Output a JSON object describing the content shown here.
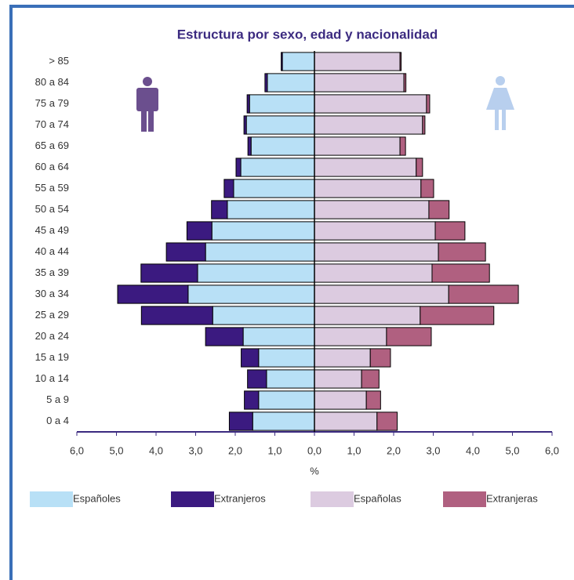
{
  "chart_data": {
    "type": "pyramid",
    "title": "Estructura por sexo, edad y nacionalidad",
    "xlabel": "%",
    "categories": [
      "> 85",
      "80 a 84",
      "75 a 79",
      "70 a 74",
      "65 a 69",
      "60 a 64",
      "55 a 59",
      "50 a 54",
      "45 a 49",
      "40 a 44",
      "35 a 39",
      "30 a 34",
      "25 a 29",
      "20 a 24",
      "15 a 19",
      "10 a 14",
      "5 a 9",
      "0 a 4"
    ],
    "series": [
      {
        "name": "Españoles",
        "color": "#b8e0f6",
        "side": "left",
        "values": [
          0.81,
          1.19,
          1.64,
          1.72,
          1.6,
          1.86,
          2.04,
          2.2,
          2.59,
          2.75,
          2.95,
          3.19,
          2.57,
          1.8,
          1.41,
          1.21,
          1.41,
          1.56
        ]
      },
      {
        "name": "Extranjeros",
        "color": "#3b1a80",
        "side": "left",
        "values": [
          0.03,
          0.06,
          0.06,
          0.06,
          0.08,
          0.12,
          0.24,
          0.4,
          0.63,
          0.99,
          1.43,
          1.78,
          1.8,
          0.95,
          0.44,
          0.48,
          0.36,
          0.59
        ]
      },
      {
        "name": "Españolas",
        "color": "#dccbe0",
        "side": "right",
        "values": [
          2.16,
          2.26,
          2.83,
          2.73,
          2.16,
          2.57,
          2.69,
          2.89,
          3.05,
          3.13,
          2.97,
          3.39,
          2.67,
          1.82,
          1.41,
          1.19,
          1.31,
          1.58
        ]
      },
      {
        "name": "Extranjeras",
        "color": "#b06080",
        "side": "right",
        "values": [
          0.03,
          0.05,
          0.08,
          0.06,
          0.14,
          0.16,
          0.32,
          0.51,
          0.75,
          1.19,
          1.45,
          1.76,
          1.86,
          1.13,
          0.51,
          0.44,
          0.36,
          0.51
        ]
      }
    ],
    "xlim": [
      -6,
      6
    ],
    "xticks": [
      {
        "value": -6,
        "label": "6,0"
      },
      {
        "value": -5,
        "label": "5,0"
      },
      {
        "value": -4,
        "label": "4,0"
      },
      {
        "value": -3,
        "label": "3,0"
      },
      {
        "value": -2,
        "label": "2,0"
      },
      {
        "value": -1,
        "label": "1,0"
      },
      {
        "value": 0,
        "label": "0,0"
      },
      {
        "value": 1,
        "label": "1,0"
      },
      {
        "value": 2,
        "label": "2,0"
      },
      {
        "value": 3,
        "label": "3,0"
      },
      {
        "value": 4,
        "label": "4,0"
      },
      {
        "value": 5,
        "label": "5,0"
      },
      {
        "value": 6,
        "label": "6,0"
      }
    ],
    "legend": "bottom"
  }
}
